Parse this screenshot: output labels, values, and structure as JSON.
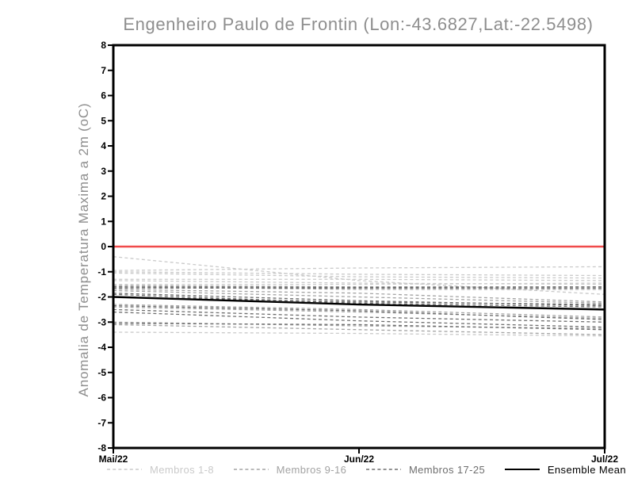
{
  "title": "Engenheiro Paulo de Frontin (Lon:-43.6827,Lat:-22.5498)",
  "y_axis_label": "Anomalia de Temperatura Maxima a 2m (oC)",
  "chart_data": {
    "type": "line",
    "x": [
      "Mai/22",
      "Jun/22",
      "Jul/22"
    ],
    "ylim": [
      -8,
      8
    ],
    "y_tick_step": 1,
    "grid": false,
    "legend_position": "bottom",
    "zero_line": {
      "value": 0,
      "color": "#f04a4a"
    },
    "axis_color": "#000000",
    "groups": [
      {
        "label": "Membros 1-8",
        "color": "#cacaca",
        "style": "dashed"
      },
      {
        "label": "Membros 9-16",
        "color": "#a3a3a3",
        "style": "dashed"
      },
      {
        "label": "Membros 17-25",
        "color": "#6e6e6e",
        "style": "dashed"
      },
      {
        "label": "Ensemble Mean",
        "color": "#000000",
        "style": "solid"
      }
    ],
    "series": [
      {
        "name": "membro-1",
        "group": 0,
        "values": [
          -0.4,
          -1.35,
          -1.9
        ]
      },
      {
        "name": "membro-2",
        "group": 0,
        "values": [
          -0.95,
          -0.85,
          -0.8
        ]
      },
      {
        "name": "membro-3",
        "group": 0,
        "values": [
          -1.0,
          -1.1,
          -1.15
        ]
      },
      {
        "name": "membro-4",
        "group": 0,
        "values": [
          -1.05,
          -1.2,
          -1.25
        ]
      },
      {
        "name": "membro-5",
        "group": 0,
        "values": [
          -1.3,
          -1.3,
          -1.35
        ]
      },
      {
        "name": "membro-6",
        "group": 0,
        "values": [
          -1.35,
          -1.45,
          -1.5
        ]
      },
      {
        "name": "membro-7",
        "group": 0,
        "values": [
          -1.5,
          -1.5,
          -1.45
        ]
      },
      {
        "name": "membro-8",
        "group": 0,
        "values": [
          -3.4,
          -3.45,
          -3.55
        ]
      },
      {
        "name": "membro-9",
        "group": 1,
        "values": [
          -1.55,
          -1.6,
          -1.6
        ]
      },
      {
        "name": "membro-10",
        "group": 1,
        "values": [
          -1.6,
          -1.7,
          -1.7
        ]
      },
      {
        "name": "membro-11",
        "group": 1,
        "values": [
          -1.7,
          -1.85,
          -2.2
        ]
      },
      {
        "name": "membro-12",
        "group": 1,
        "values": [
          -1.75,
          -2.0,
          -2.25
        ]
      },
      {
        "name": "membro-13",
        "group": 1,
        "values": [
          -2.3,
          -2.5,
          -2.8
        ]
      },
      {
        "name": "membro-14",
        "group": 1,
        "values": [
          -2.4,
          -2.6,
          -2.85
        ]
      },
      {
        "name": "membro-15",
        "group": 1,
        "values": [
          -3.0,
          -3.15,
          -3.25
        ]
      },
      {
        "name": "membro-16",
        "group": 1,
        "values": [
          -3.1,
          -3.3,
          -3.5
        ]
      },
      {
        "name": "membro-17",
        "group": 2,
        "values": [
          -1.6,
          -1.62,
          -1.6
        ]
      },
      {
        "name": "membro-18",
        "group": 2,
        "values": [
          -1.65,
          -1.65,
          -1.65
        ]
      },
      {
        "name": "membro-19",
        "group": 2,
        "values": [
          -1.85,
          -2.15,
          -2.35
        ]
      },
      {
        "name": "membro-20",
        "group": 2,
        "values": [
          -1.9,
          -2.25,
          -2.4
        ]
      },
      {
        "name": "membro-21",
        "group": 2,
        "values": [
          -2.0,
          -2.2,
          -2.3
        ]
      },
      {
        "name": "membro-22",
        "group": 2,
        "values": [
          -2.35,
          -2.55,
          -2.9
        ]
      },
      {
        "name": "membro-23",
        "group": 2,
        "values": [
          -2.5,
          -2.8,
          -3.0
        ]
      },
      {
        "name": "membro-24",
        "group": 2,
        "values": [
          -2.6,
          -2.95,
          -3.2
        ]
      },
      {
        "name": "membro-25",
        "group": 2,
        "values": [
          -3.05,
          -3.1,
          -3.3
        ]
      },
      {
        "name": "ensemble-mean",
        "group": 3,
        "values": [
          -2.0,
          -2.3,
          -2.5
        ]
      }
    ]
  }
}
